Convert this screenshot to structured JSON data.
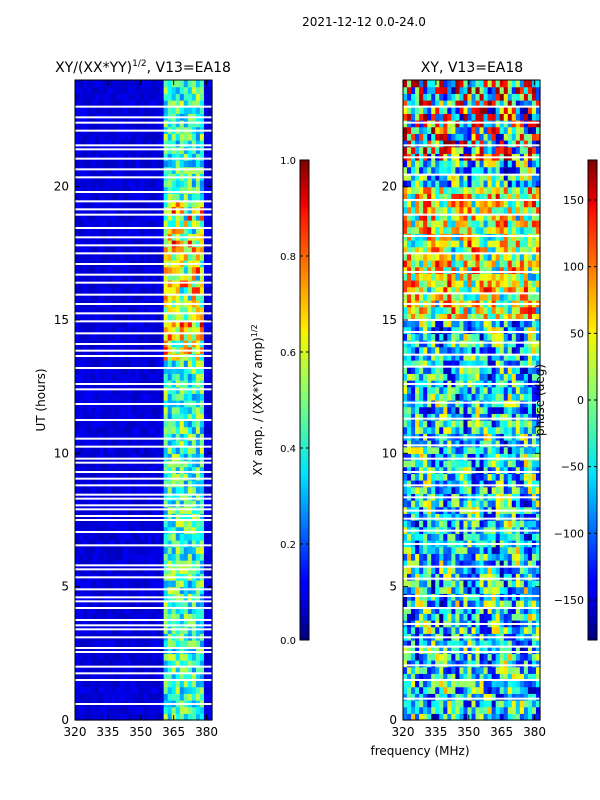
{
  "figure_title": "2021-12-12 0.0-24.0",
  "chart_data": [
    {
      "type": "heatmap",
      "title_main": "XY/(XX*YY)",
      "title_sup": "1/2",
      "title_tail": ", V13=EA18",
      "xlabel": "",
      "ylabel": "UT (hours)",
      "xlim": [
        320,
        382.5
      ],
      "ylim": [
        0,
        24
      ],
      "xticks": [
        320,
        335,
        350,
        365,
        380
      ],
      "yticks": [
        0,
        5,
        10,
        15,
        20
      ],
      "colorbar": {
        "label_main": "XY amp. / (XX*YY amp)",
        "label_sup": "1/2",
        "min": 0.0,
        "max": 1.0,
        "ticks": [
          "0.0",
          "0.2",
          "0.4",
          "0.6",
          "0.8",
          "1.0"
        ],
        "tick_values": [
          0.0,
          0.2,
          0.4,
          0.6,
          0.8,
          1.0
        ]
      },
      "colormap": "jet",
      "bright_band_mhz": [
        360,
        378
      ],
      "gap_hours": [
        0.6,
        1.5,
        1.75,
        2.0,
        2.55,
        2.7,
        3.1,
        3.4,
        3.55,
        3.75,
        4.2,
        4.45,
        4.6,
        4.9,
        5.35,
        5.65,
        5.8,
        6.55,
        7.05,
        7.5,
        7.65,
        7.9,
        8.05,
        8.3,
        8.45,
        8.8,
        9.05,
        9.3,
        9.65,
        9.8,
        10.25,
        10.55,
        11.25,
        11.85,
        12.4,
        12.6,
        13.2,
        13.65,
        13.85,
        14.1,
        14.5,
        14.95,
        15.25,
        15.6,
        15.95,
        16.4,
        16.7,
        17.1,
        17.5,
        17.8,
        18.1,
        18.45,
        18.95,
        19.15,
        19.45,
        19.8,
        20.35,
        20.65,
        21.05,
        21.4,
        21.55,
        22.1,
        22.4,
        22.6,
        23.0
      ]
    },
    {
      "type": "heatmap",
      "title": "XY, V13=EA18",
      "xlabel": "frequency (MHz)",
      "ylabel": "",
      "xlim": [
        320,
        382.5
      ],
      "ylim": [
        0,
        24
      ],
      "xticks": [
        320,
        335,
        350,
        365,
        380
      ],
      "yticks": [
        0,
        5,
        10,
        15,
        20
      ],
      "colorbar": {
        "label": "phase (deg)",
        "min": -180,
        "max": 180,
        "ticks": [
          "−150",
          "−100",
          "−50",
          "0",
          "50",
          "100",
          "150"
        ],
        "tick_values": [
          -150,
          -100,
          -50,
          0,
          50,
          100,
          150
        ]
      },
      "colormap": "jet",
      "gap_hours": [
        0.8,
        1.5,
        2.05,
        2.55,
        2.75,
        3.1,
        3.6,
        4.2,
        4.65,
        5.3,
        5.75,
        6.6,
        7.1,
        7.55,
        7.85,
        8.35,
        8.8,
        9.3,
        9.8,
        10.3,
        10.6,
        11.3,
        11.9,
        12.6,
        13.25,
        13.7,
        14.15,
        14.55,
        15.0,
        15.6,
        16.0,
        16.8,
        17.5,
        18.15,
        18.95,
        19.5,
        20.45,
        21.1,
        21.55,
        22.4,
        23.0
      ]
    }
  ]
}
